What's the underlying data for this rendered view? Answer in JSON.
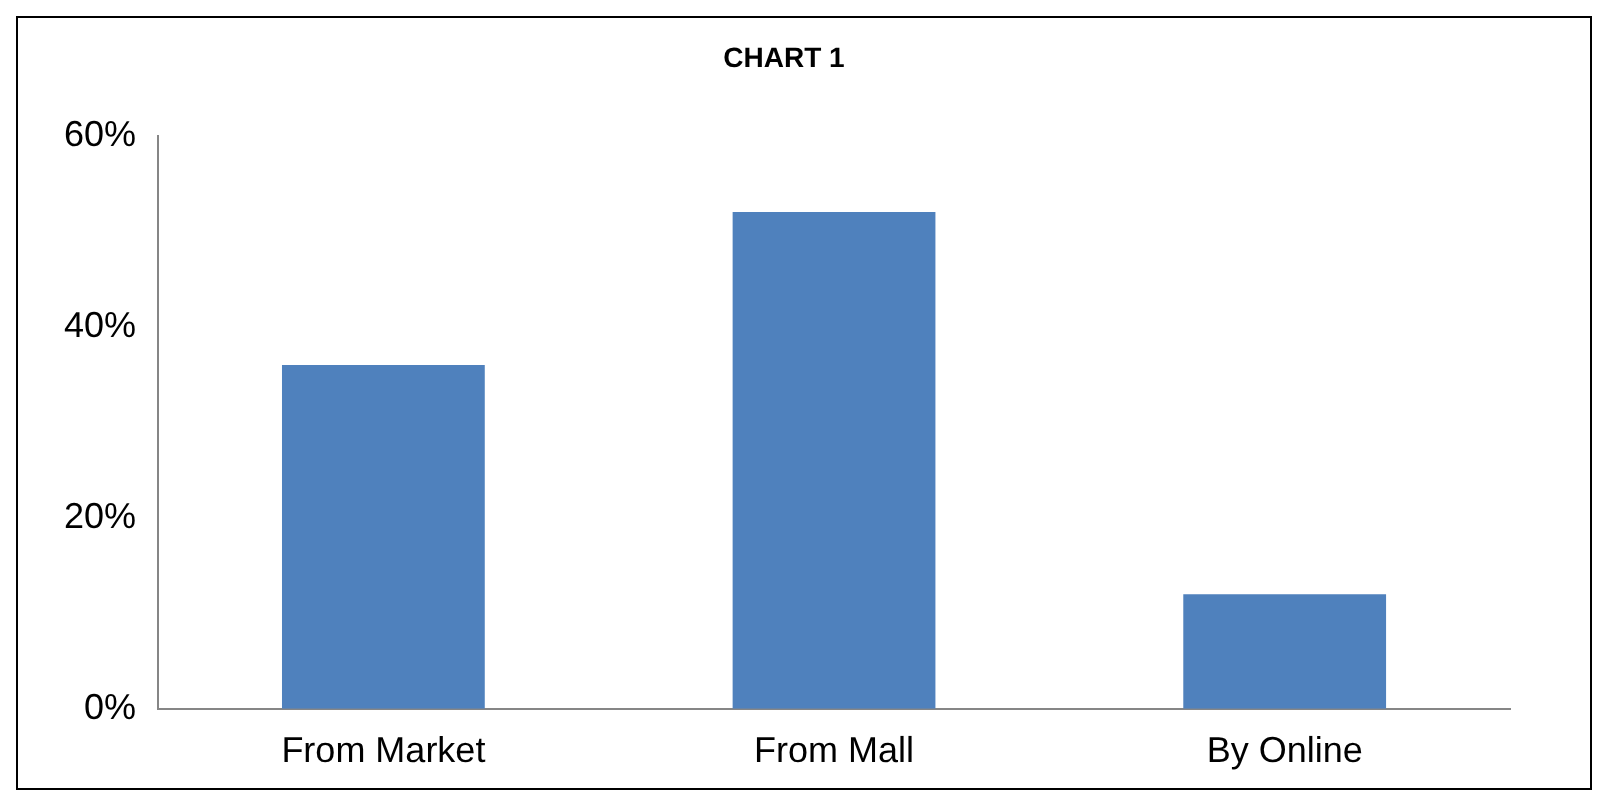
{
  "chart_data": {
    "type": "bar",
    "title": "CHART 1",
    "categories": [
      "From Market",
      "From Mall",
      "By Online"
    ],
    "values": [
      36,
      52,
      12
    ],
    "color": "#4f81bd",
    "ylim": [
      0,
      60
    ],
    "yticks": [
      {
        "value": 0,
        "label": "0%"
      },
      {
        "value": 20,
        "label": "20%"
      },
      {
        "value": 40,
        "label": "40%"
      },
      {
        "value": 60,
        "label": "60%"
      }
    ],
    "grid": false,
    "legend": false
  }
}
